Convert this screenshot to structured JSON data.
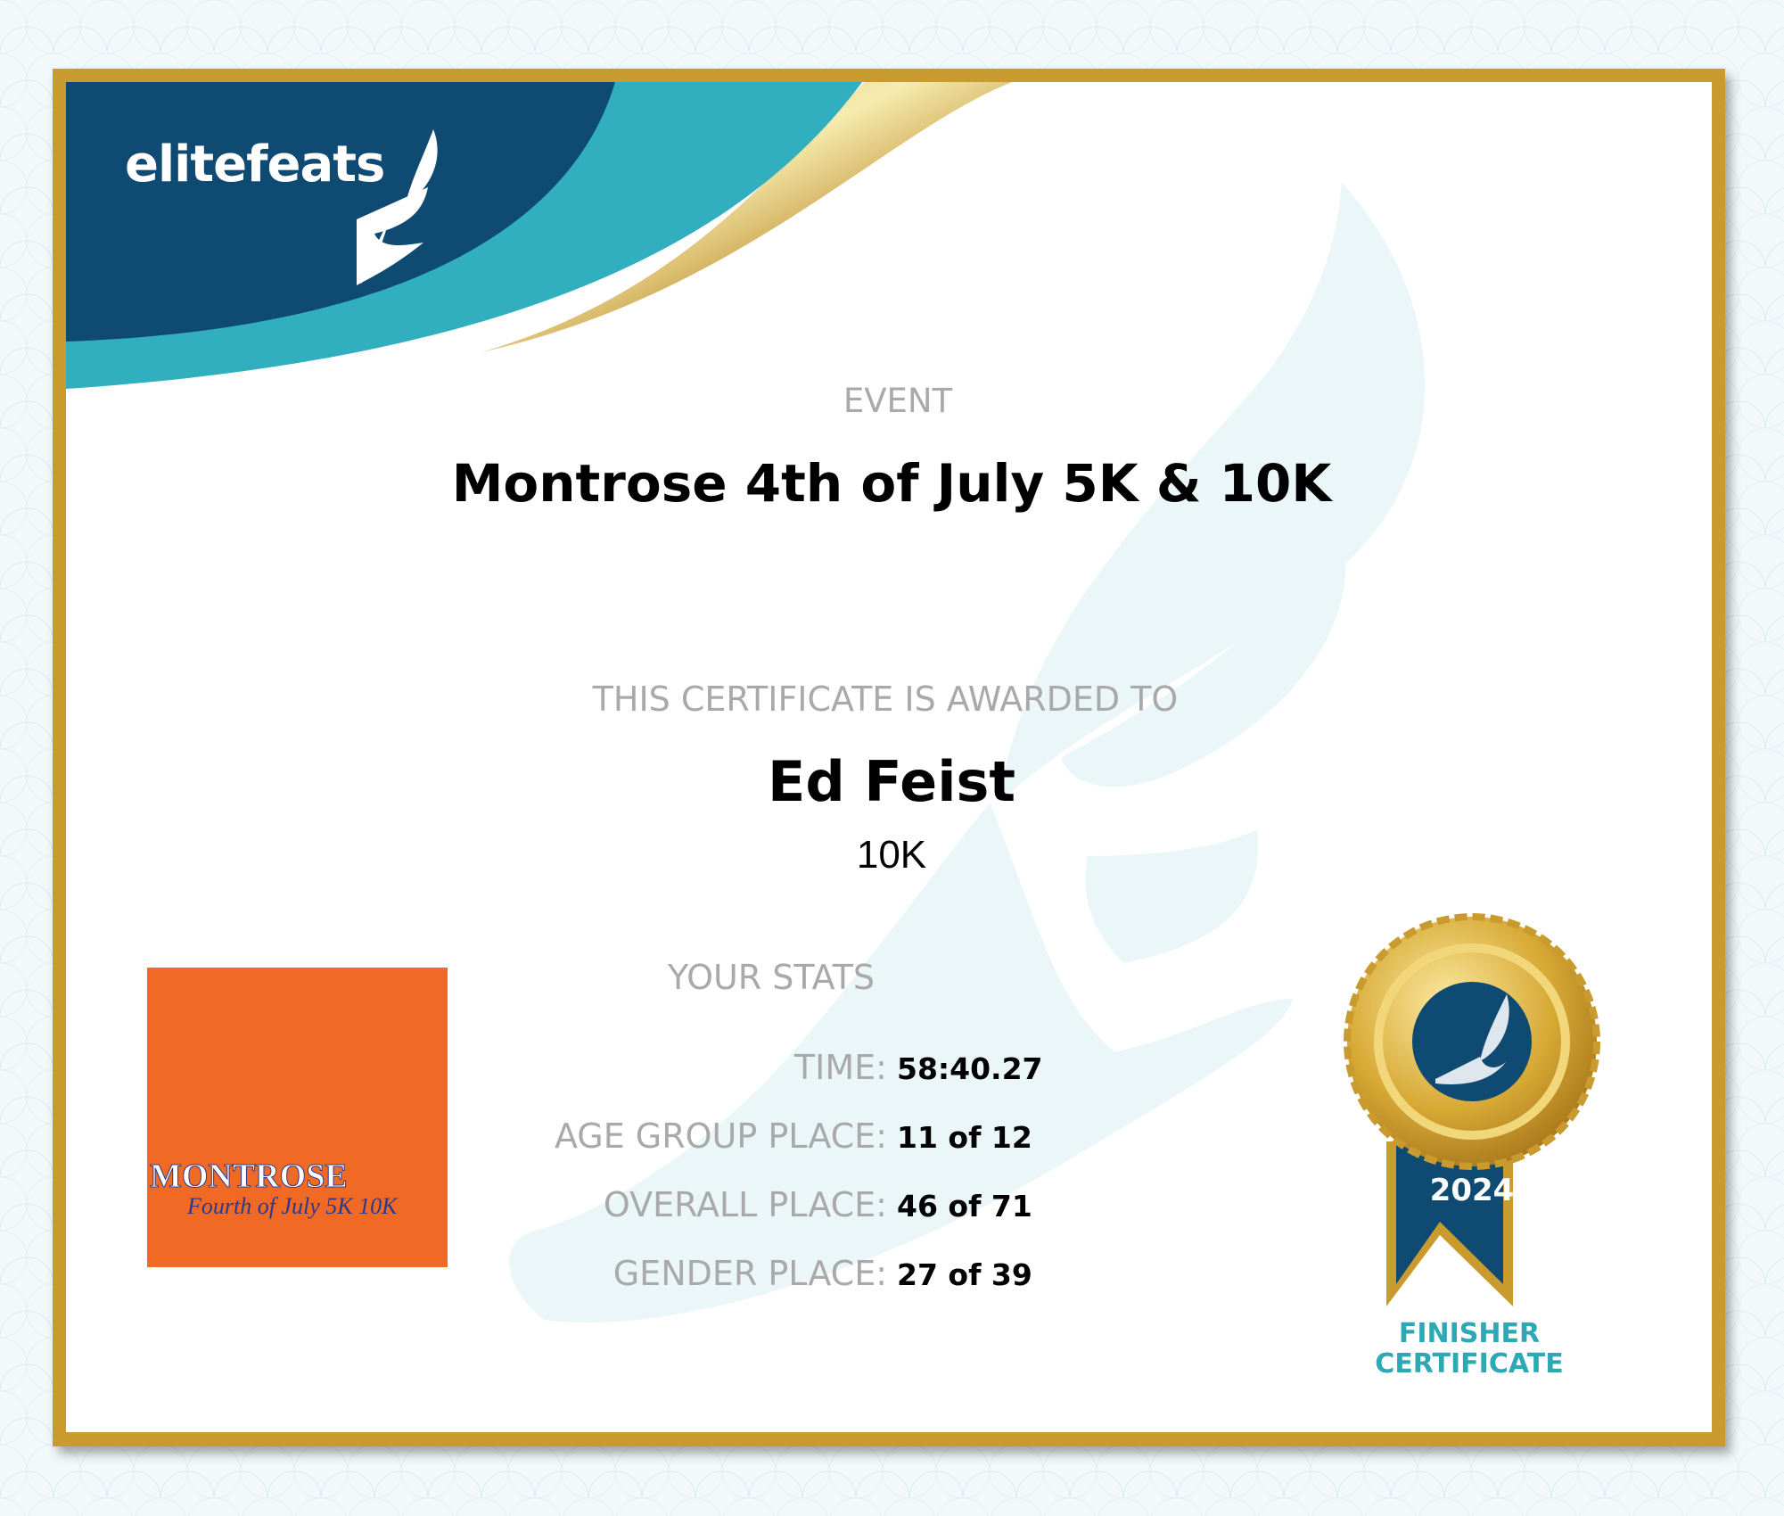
{
  "brand": {
    "name": "elitefeats",
    "icon": "winged-foot-icon"
  },
  "certificate": {
    "event_label": "EVENT",
    "event_title": "Montrose 4th of July 5K & 10K",
    "awarded_label": "THIS CERTIFICATE IS AWARDED TO",
    "recipient": "Ed Feist",
    "category": "10K"
  },
  "event_logo": {
    "title": "MONTROSE",
    "subtitle": "Fourth of July 5K 10K"
  },
  "stats": {
    "heading": "YOUR STATS",
    "rows": [
      {
        "label": "TIME:",
        "value": "58:40.27"
      },
      {
        "label": "AGE GROUP PLACE:",
        "value": "11 of 12"
      },
      {
        "label": "OVERALL PLACE:",
        "value": "46 of 71"
      },
      {
        "label": "GENDER PLACE:",
        "value": "27 of 39"
      }
    ]
  },
  "medal": {
    "year": "2024",
    "caption_line1": "FINISHER",
    "caption_line2": "CERTIFICATE"
  },
  "colors": {
    "navy": "#0f4a72",
    "teal": "#31afbf",
    "gold": "#c99a2e",
    "orange": "#f06a25"
  }
}
